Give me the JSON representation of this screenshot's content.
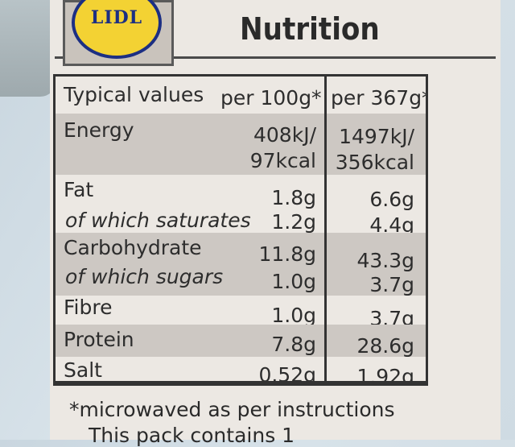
{
  "logo": {
    "text": "LIDL"
  },
  "title": "Nutrition",
  "header": {
    "label": "Typical values",
    "col1": "per 100g*",
    "col2": "per 367g*"
  },
  "rows": [
    {
      "name": "Energy",
      "v1a": "408kJ/",
      "v1b": "97kcal",
      "v2a": "1497kJ/",
      "v2b": "356kcal"
    },
    {
      "name": "Fat",
      "v1": "1.8g",
      "v2": "6.6g"
    },
    {
      "name": "of which saturates",
      "v1": "1.2g",
      "v2": "4.4g"
    },
    {
      "name": "Carbohydrate",
      "v1": "11.8g",
      "v2": "43.3g"
    },
    {
      "name": "of which sugars",
      "v1": "1.0g",
      "v2": "3.7g"
    },
    {
      "name": "Fibre",
      "v1": "1.0g",
      "v2": "3.7g"
    },
    {
      "name": "Protein",
      "v1": "7.8g",
      "v2": "28.6g"
    },
    {
      "name": "Salt",
      "v1": "0.52g",
      "v2": "1.92g"
    }
  ],
  "footnote": "*microwaved as per instructions",
  "footnote_partial": "This pack contains 1"
}
